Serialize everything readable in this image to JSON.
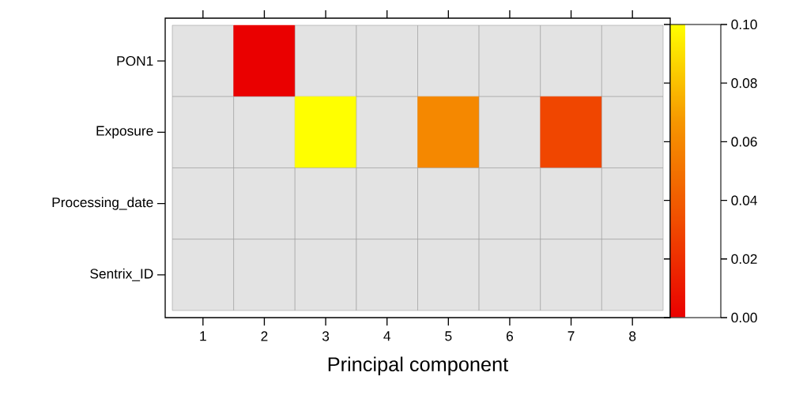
{
  "chart_data": {
    "type": "heatmap",
    "xlabel": "Principal component",
    "categories": [
      "1",
      "2",
      "3",
      "4",
      "5",
      "6",
      "7",
      "8"
    ],
    "y_categories": [
      "PON1",
      "Exposure",
      "Processing_date",
      "Sentrix_ID"
    ],
    "cells": [
      [
        null,
        0.0,
        null,
        null,
        null,
        null,
        null,
        null
      ],
      [
        null,
        null,
        0.1,
        null,
        0.06,
        null,
        0.03,
        null
      ],
      [
        null,
        null,
        null,
        null,
        null,
        null,
        null,
        null
      ],
      [
        null,
        null,
        null,
        null,
        null,
        null,
        null,
        null
      ]
    ],
    "clim": [
      0,
      0.1
    ],
    "cticks": [
      {
        "value": 0,
        "label": "0.00"
      },
      {
        "value": 0.02,
        "label": "0.02"
      },
      {
        "value": 0.04,
        "label": "0.04"
      },
      {
        "value": 0.06,
        "label": "0.06"
      },
      {
        "value": 0.08,
        "label": "0.08"
      },
      {
        "value": 0.1,
        "label": "0.10"
      }
    ]
  }
}
